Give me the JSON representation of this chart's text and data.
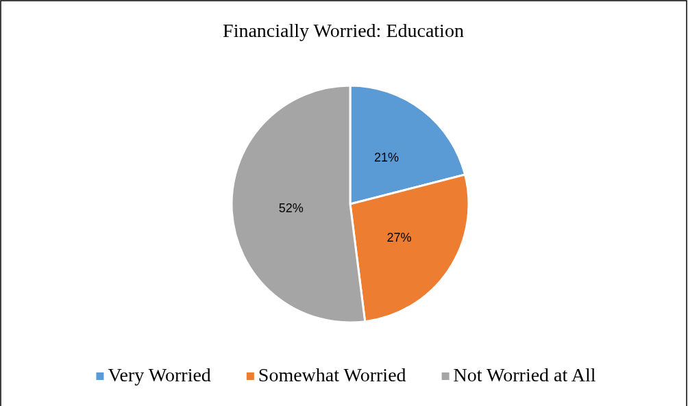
{
  "chart_data": {
    "type": "pie",
    "title": "Financially Worried: Education",
    "categories": [
      "Very Worried",
      "Somewhat Worried",
      "Not Worried at All"
    ],
    "values": [
      21,
      27,
      52
    ],
    "colors": [
      "#5b9bd5",
      "#ed7d31",
      "#a5a5a5"
    ],
    "value_labels": [
      "21%",
      "27%",
      "52%"
    ],
    "legend": "bottom"
  }
}
